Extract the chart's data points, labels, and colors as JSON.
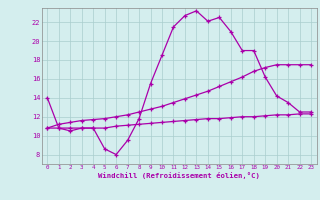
{
  "xlabel": "Windchill (Refroidissement éolien,°C)",
  "background_color": "#d4eeee",
  "grid_color": "#aacece",
  "line_color": "#aa00aa",
  "x_ticks": [
    0,
    1,
    2,
    3,
    4,
    5,
    6,
    7,
    8,
    9,
    10,
    11,
    12,
    13,
    14,
    15,
    16,
    17,
    18,
    19,
    20,
    21,
    22,
    23
  ],
  "ylim": [
    7.0,
    23.5
  ],
  "yticks": [
    8,
    10,
    12,
    14,
    16,
    18,
    20,
    22
  ],
  "line1_x": [
    0,
    1,
    2,
    3,
    4,
    5,
    6,
    7,
    8,
    9,
    10,
    11,
    12,
    13,
    14,
    15,
    16,
    17,
    18,
    19,
    20,
    21,
    22,
    23
  ],
  "line1_y": [
    14.0,
    10.8,
    10.5,
    10.8,
    10.8,
    8.6,
    8.0,
    9.5,
    11.8,
    15.5,
    18.5,
    21.5,
    22.7,
    23.2,
    22.1,
    22.5,
    21.0,
    19.0,
    19.0,
    16.2,
    14.2,
    13.5,
    12.5,
    12.5
  ],
  "line2_x": [
    0,
    1,
    2,
    3,
    4,
    5,
    6,
    7,
    8,
    9,
    10,
    11,
    12,
    13,
    14,
    15,
    16,
    17,
    18,
    19,
    20,
    21,
    22,
    23
  ],
  "line2_y": [
    10.8,
    10.8,
    10.8,
    10.8,
    10.8,
    10.8,
    11.0,
    11.1,
    11.2,
    11.3,
    11.4,
    11.5,
    11.6,
    11.7,
    11.8,
    11.8,
    11.9,
    12.0,
    12.0,
    12.1,
    12.2,
    12.2,
    12.3,
    12.3
  ],
  "line3_x": [
    0,
    1,
    2,
    3,
    4,
    5,
    6,
    7,
    8,
    9,
    10,
    11,
    12,
    13,
    14,
    15,
    16,
    17,
    18,
    19,
    20,
    21,
    22,
    23
  ],
  "line3_y": [
    10.8,
    11.2,
    11.4,
    11.6,
    11.7,
    11.8,
    12.0,
    12.2,
    12.5,
    12.8,
    13.1,
    13.5,
    13.9,
    14.3,
    14.7,
    15.2,
    15.7,
    16.2,
    16.8,
    17.2,
    17.5,
    17.5,
    17.5,
    17.5
  ]
}
